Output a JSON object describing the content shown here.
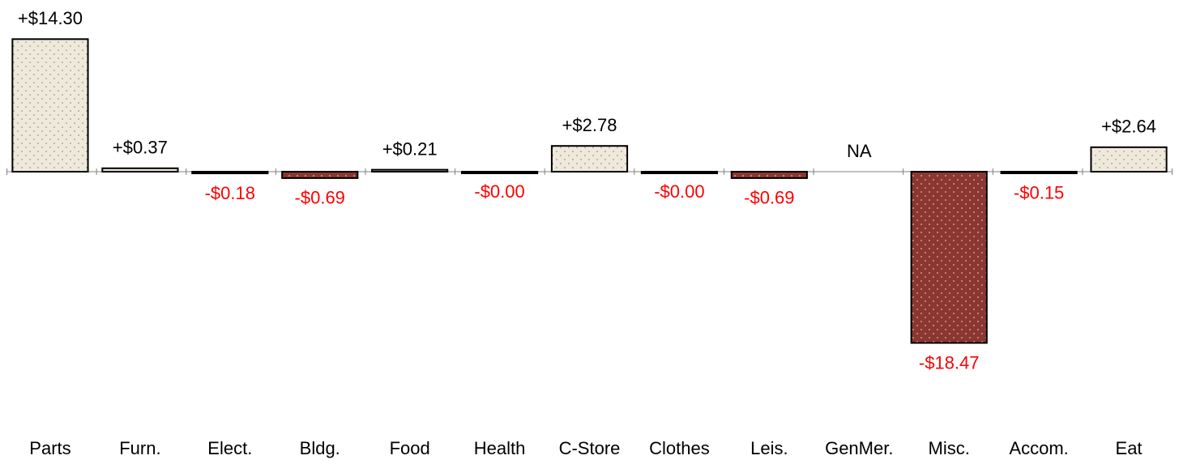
{
  "chart_data": {
    "type": "bar",
    "categories": [
      "Parts",
      "Furn.",
      "Elect.",
      "Bldg.",
      "Food",
      "Health",
      "C-Store",
      "Clothes",
      "Leis.",
      "GenMer.",
      "Misc.",
      "Accom.",
      "Eat"
    ],
    "values": [
      14.3,
      0.37,
      -0.18,
      -0.69,
      0.21,
      0,
      2.78,
      0,
      -0.69,
      null,
      -18.47,
      -0.15,
      2.64
    ],
    "value_labels": [
      "+$14.30",
      "+$0.37",
      "-$0.18",
      "-$0.69",
      "+$0.21",
      "-$0.00",
      "+$2.78",
      "-$0.00",
      "-$0.69",
      "NA",
      "-$18.47",
      "-$0.15",
      "+$2.64"
    ],
    "ylim": [
      -20,
      15
    ],
    "positive_color": "#efe9dc",
    "negative_color": "#8b3630",
    "positive_label_color": "#000000",
    "negative_label_color": "#ff0000"
  }
}
